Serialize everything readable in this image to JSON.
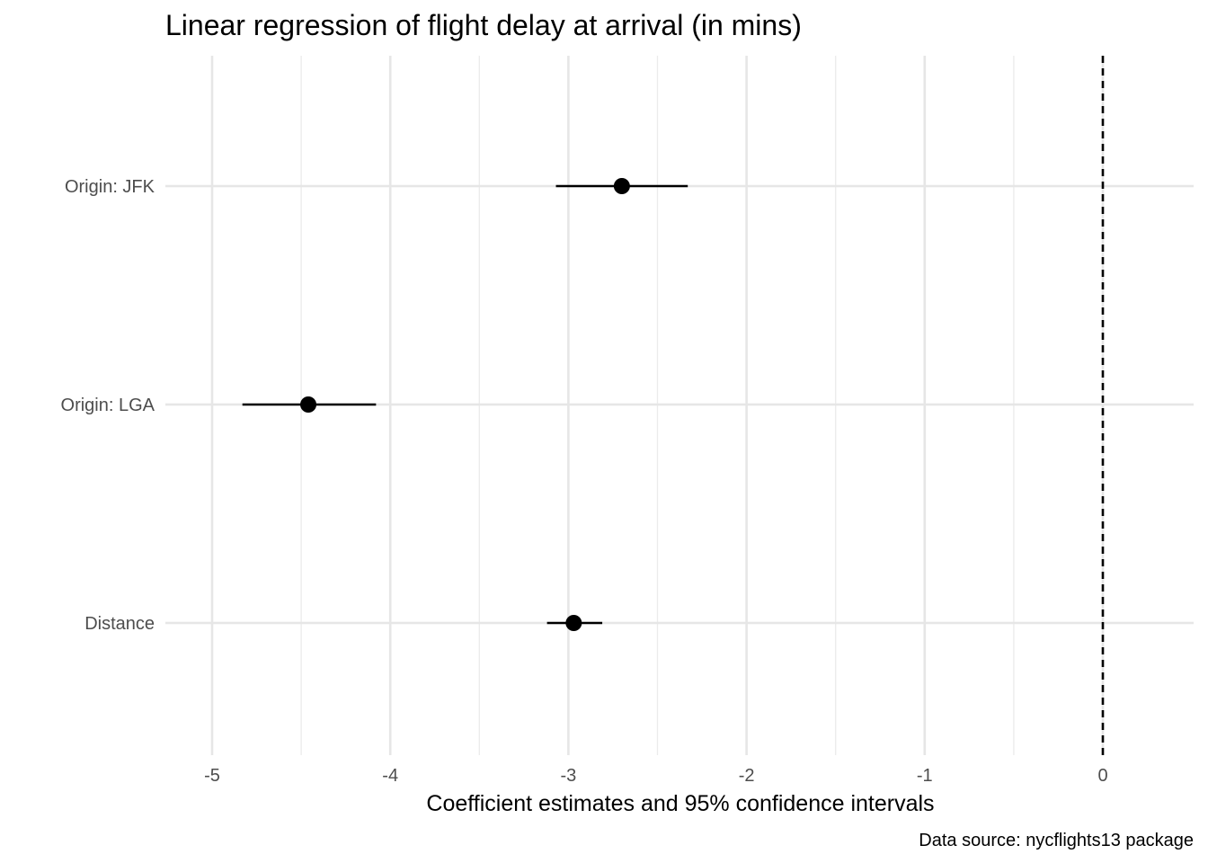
{
  "chart_data": {
    "type": "scatter",
    "title": "Linear regression of flight delay at arrival (in mins)",
    "xlabel": "Coefficient estimates and 95% confidence intervals",
    "ylabel": "",
    "caption": "Data source: nycflights13 package",
    "xlim": [
      -5.0,
      0.5
    ],
    "x_ticks": [
      -5,
      -4,
      -3,
      -2,
      -1,
      0
    ],
    "x_tick_labels": [
      "-5",
      "-4",
      "-3",
      "-2",
      "-1",
      "0"
    ],
    "reference_line": 0,
    "grid": true,
    "point_color": "#000000",
    "terms": [
      {
        "label": "Origin: JFK",
        "estimate": -2.7,
        "conf_low": -3.07,
        "conf_high": -2.33
      },
      {
        "label": "Origin: LGA",
        "estimate": -4.46,
        "conf_low": -4.83,
        "conf_high": -4.08
      },
      {
        "label": "Distance",
        "estimate": -2.97,
        "conf_low": -3.12,
        "conf_high": -2.81
      }
    ]
  }
}
